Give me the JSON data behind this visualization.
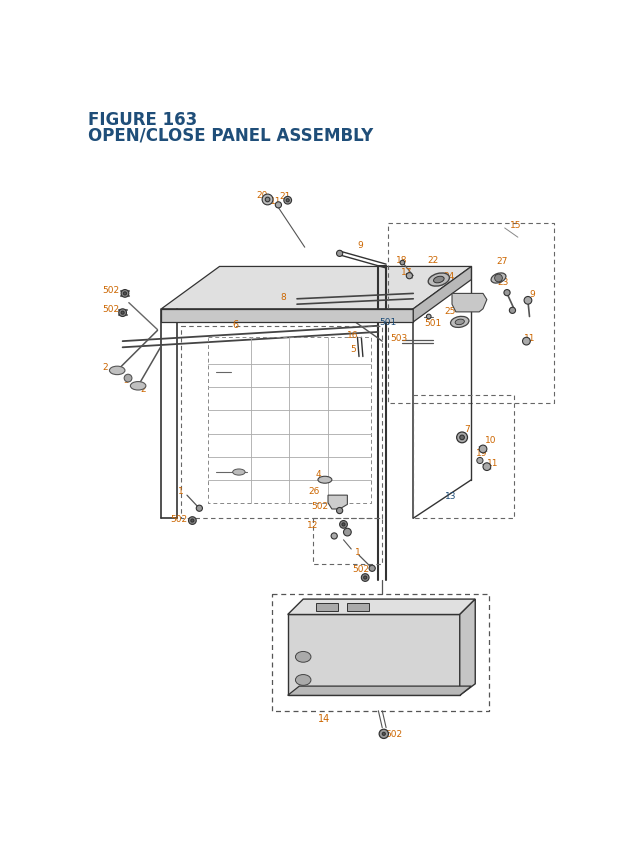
{
  "title_line1": "FIGURE 163",
  "title_line2": "OPEN/CLOSE PANEL ASSEMBLY",
  "title_color": "#1f4e79",
  "label_orange": "#cc6600",
  "label_blue": "#1f4e79",
  "line_color": "#333333",
  "dash_color": "#666666",
  "part_fill": "#cccccc",
  "bg_color": "#ffffff",
  "fig_width": 6.4,
  "fig_height": 8.62,
  "dpi": 100
}
